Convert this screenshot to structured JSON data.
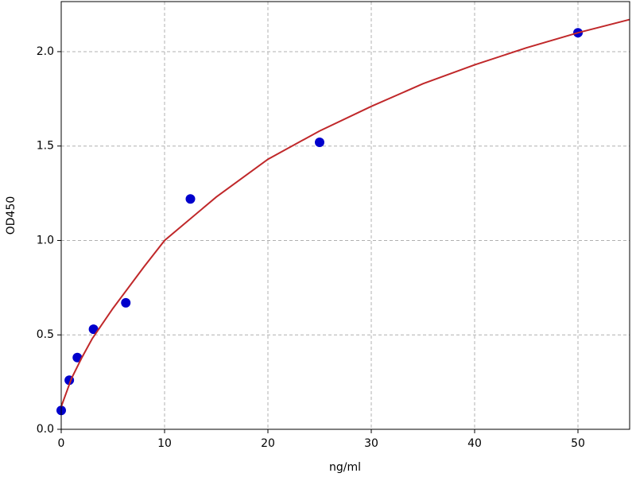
{
  "chart_data": {
    "type": "scatter",
    "xlabel": "ng/ml",
    "ylabel": "OD450",
    "xlim": [
      0,
      55
    ],
    "ylim": [
      0,
      2.265
    ],
    "xticks": [
      0,
      10,
      20,
      30,
      40,
      50
    ],
    "yticks": [
      {
        "value": 0,
        "label": "0.0"
      },
      0.5,
      {
        "value": 1,
        "label": "1.0"
      },
      1.5,
      {
        "value": 2,
        "label": "2.0"
      }
    ],
    "grid": true,
    "series": [
      {
        "type": "scatter",
        "color": "#0000cc",
        "x": [
          0,
          0.78,
          1.56,
          3.125,
          6.25,
          12.5,
          25,
          50
        ],
        "values": [
          0.1,
          0.26,
          0.38,
          0.53,
          0.67,
          1.22,
          1.52,
          2.1
        ]
      },
      {
        "type": "line",
        "color": "#c0282a",
        "x": [
          0,
          1,
          2,
          3,
          5,
          8,
          10,
          15,
          20,
          25,
          30,
          35,
          40,
          45,
          50,
          55
        ],
        "values": [
          0.12,
          0.27,
          0.38,
          0.48,
          0.64,
          0.86,
          1.0,
          1.23,
          1.43,
          1.58,
          1.71,
          1.83,
          1.93,
          2.02,
          2.1,
          2.17
        ]
      }
    ]
  }
}
